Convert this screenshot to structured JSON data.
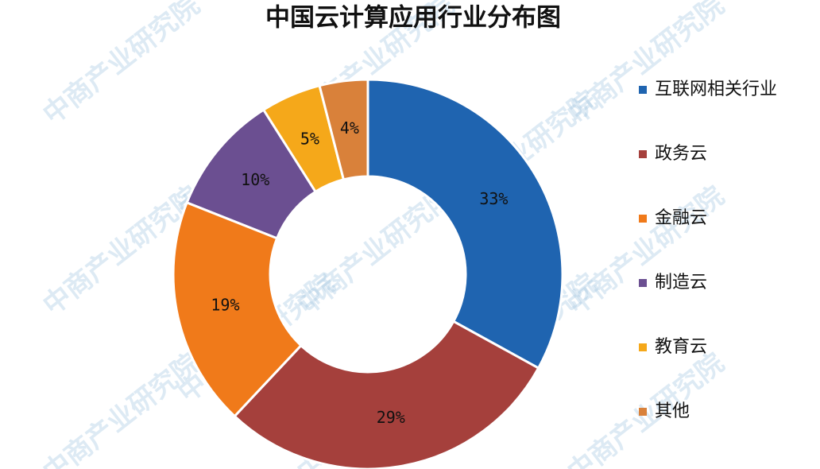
{
  "chart_data": {
    "type": "donut",
    "title": "中国云计算应用行业分布图",
    "categories": [
      "互联网相关行业",
      "政务云",
      "金融云",
      "制造云",
      "教育云",
      "其他"
    ],
    "values": [
      33,
      29,
      19,
      10,
      5,
      4
    ],
    "value_labels": [
      "33%",
      "29%",
      "19%",
      "10%",
      "5%",
      "4%"
    ],
    "colors": [
      "#1f64b0",
      "#a5403c",
      "#f07a1a",
      "#6b4f91",
      "#f5a81a",
      "#d9813a"
    ],
    "legend": "right",
    "watermark": "中商产业研究院"
  }
}
